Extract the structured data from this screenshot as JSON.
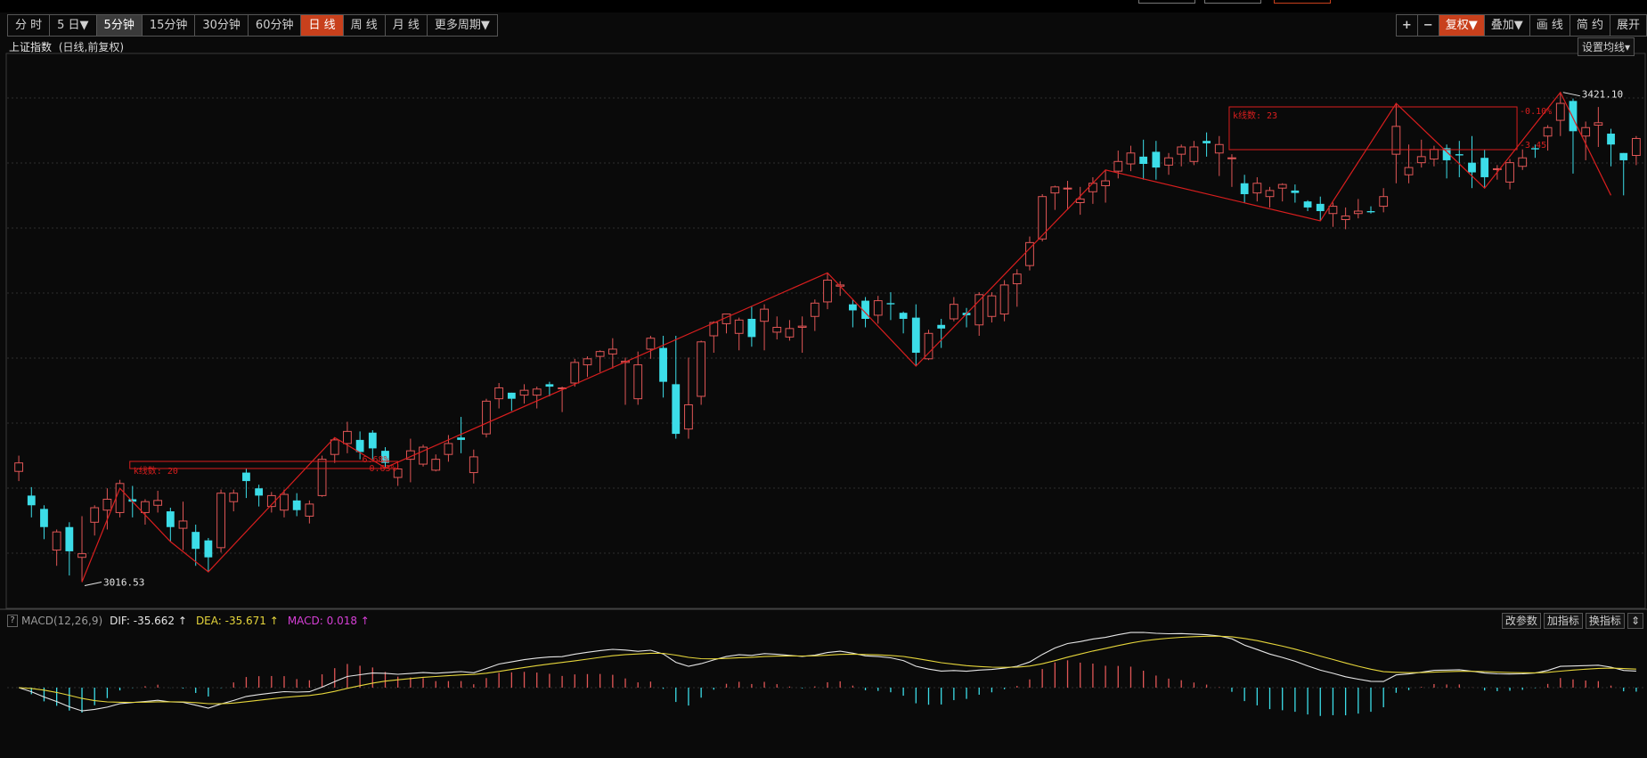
{
  "toolbar": {
    "periods": [
      {
        "label": "分 时",
        "state": "normal"
      },
      {
        "label": "5 日▼",
        "state": "normal"
      },
      {
        "label": "5分钟",
        "state": "highlight"
      },
      {
        "label": "15分钟",
        "state": "normal"
      },
      {
        "label": "30分钟",
        "state": "normal"
      },
      {
        "label": "60分钟",
        "state": "normal"
      },
      {
        "label": "日 线",
        "state": "active"
      },
      {
        "label": "周 线",
        "state": "normal"
      },
      {
        "label": "月 线",
        "state": "normal"
      },
      {
        "label": "更多周期▼",
        "state": "normal"
      }
    ],
    "zoom_in": "+",
    "zoom_out": "−",
    "right_buttons": [
      {
        "label": "复权▼",
        "state": "active"
      },
      {
        "label": "叠加▼",
        "state": "normal"
      },
      {
        "label": "画 线",
        "state": "normal"
      },
      {
        "label": "简 约",
        "state": "normal"
      },
      {
        "label": "展开",
        "state": "normal"
      }
    ]
  },
  "header": {
    "title": "上证指数",
    "mode": "(日线,前复权)",
    "set_ma": "设置均线▾"
  },
  "chart_labels": {
    "low_marker": "3016.53",
    "high_marker": "3421.10",
    "box1_label": "k线数: 20",
    "box1_upper": "6.68%",
    "box1_lower": "0.63%",
    "box2_label": "k线数: 23",
    "box2_upper": "-0.10%",
    "box2_lower": "-3.45"
  },
  "macd": {
    "help": "?",
    "name": "MACD(12,26,9)",
    "dif": "DIF: -35.662 ↑",
    "dea": "DEA: -35.671 ↑",
    "macd": "MACD: 0.018 ↑",
    "buttons": [
      "改参数",
      "加指标",
      "换指标"
    ]
  },
  "colors": {
    "up": "#e05656",
    "down": "#3cdde8",
    "accent": "#c8401c",
    "dif_line": "#e6e6e6",
    "dea_line": "#e5d53b",
    "zigzag": "#d91e1e"
  },
  "chart_data": {
    "type": "candlestick",
    "price_range": [
      3016.53,
      3421.1
    ],
    "candles": [
      [
        3108,
        3115,
        3100,
        3121
      ],
      [
        3088,
        3080,
        3070,
        3095
      ],
      [
        3077,
        3062,
        3052,
        3080
      ],
      [
        3043,
        3058,
        3030,
        3060
      ],
      [
        3062,
        3042,
        3022,
        3066
      ],
      [
        3037,
        3040,
        3016.53,
        3071
      ],
      [
        3066,
        3078,
        3055,
        3080
      ],
      [
        3076,
        3085,
        3060,
        3094
      ],
      [
        3074,
        3098,
        3070,
        3101
      ],
      [
        3085,
        3083,
        3070,
        3096
      ],
      [
        3074,
        3083,
        3064,
        3085
      ],
      [
        3080,
        3084,
        3074,
        3092
      ],
      [
        3075,
        3062,
        3050,
        3078
      ],
      [
        3061,
        3067,
        3043,
        3083
      ],
      [
        3058,
        3044,
        3030,
        3064
      ],
      [
        3051,
        3037,
        3025,
        3053
      ],
      [
        3045,
        3090,
        3041,
        3093
      ],
      [
        3083,
        3090,
        3075,
        3093
      ],
      [
        3107,
        3100,
        3086,
        3110
      ],
      [
        3094,
        3088,
        3079,
        3097
      ],
      [
        3079,
        3088,
        3074,
        3091
      ],
      [
        3076,
        3089,
        3070,
        3093
      ],
      [
        3084,
        3076,
        3071,
        3090
      ],
      [
        3071,
        3081,
        3065,
        3084
      ],
      [
        3088,
        3118,
        3087,
        3121
      ],
      [
        3122,
        3134,
        3115,
        3136
      ],
      [
        3131,
        3141,
        3123,
        3149
      ],
      [
        3134,
        3124,
        3118,
        3141
      ],
      [
        3140,
        3127,
        3118,
        3142
      ],
      [
        3125,
        3115,
        3111,
        3128
      ],
      [
        3103,
        3110,
        3096,
        3114
      ],
      [
        3118,
        3125,
        3099,
        3135
      ],
      [
        3114,
        3128,
        3112,
        3130
      ],
      [
        3109,
        3118,
        3108,
        3122
      ],
      [
        3122,
        3131,
        3116,
        3138
      ],
      [
        3136,
        3134,
        3123,
        3153
      ],
      [
        3107,
        3120,
        3098,
        3126
      ],
      [
        3139,
        3166,
        3136,
        3168
      ],
      [
        3168,
        3177,
        3160,
        3181
      ],
      [
        3173,
        3168,
        3158,
        3173
      ],
      [
        3171,
        3175,
        3164,
        3180
      ],
      [
        3171,
        3176,
        3160,
        3178
      ],
      [
        3180,
        3178,
        3170,
        3182
      ],
      [
        3177,
        3177,
        3157,
        3178
      ],
      [
        3181,
        3198,
        3178,
        3201
      ],
      [
        3196,
        3201,
        3186,
        3203
      ],
      [
        3203,
        3207,
        3190,
        3208
      ],
      [
        3205,
        3209,
        3193,
        3218
      ],
      [
        3198,
        3199,
        3163,
        3202
      ],
      [
        3168,
        3196,
        3163,
        3207
      ],
      [
        3209,
        3218,
        3201,
        3220
      ],
      [
        3210,
        3182,
        3169,
        3220
      ],
      [
        3180,
        3139,
        3135,
        3220
      ],
      [
        3143,
        3163,
        3135,
        3202
      ],
      [
        3170,
        3215,
        3163,
        3216
      ],
      [
        3220,
        3231,
        3206,
        3232
      ],
      [
        3230,
        3238,
        3222,
        3238
      ],
      [
        3222,
        3233,
        3208,
        3235
      ],
      [
        3234,
        3219,
        3211,
        3244
      ],
      [
        3232,
        3242,
        3208,
        3246
      ],
      [
        3223,
        3227,
        3217,
        3236
      ],
      [
        3219,
        3226,
        3216,
        3233
      ],
      [
        3227,
        3228,
        3206,
        3236
      ],
      [
        3236,
        3247,
        3224,
        3250
      ],
      [
        3248,
        3266,
        3242,
        3272
      ],
      [
        3261,
        3262,
        3253,
        3265
      ],
      [
        3246,
        3241,
        3227,
        3250
      ],
      [
        3249,
        3234,
        3227,
        3252
      ],
      [
        3237,
        3249,
        3230,
        3253
      ],
      [
        3247,
        3246,
        3233,
        3256
      ],
      [
        3239,
        3234,
        3222,
        3240
      ],
      [
        3235,
        3206,
        3195,
        3246
      ],
      [
        3201,
        3222,
        3200,
        3225
      ],
      [
        3229,
        3226,
        3210,
        3234
      ],
      [
        3234,
        3246,
        3232,
        3252
      ],
      [
        3239,
        3237,
        3227,
        3243
      ],
      [
        3229,
        3254,
        3220,
        3256
      ],
      [
        3236,
        3253,
        3231,
        3256
      ],
      [
        3238,
        3262,
        3232,
        3266
      ],
      [
        3263,
        3271,
        3244,
        3275
      ],
      [
        3278,
        3297,
        3274,
        3302
      ],
      [
        3300,
        3335,
        3298,
        3337
      ],
      [
        3338,
        3343,
        3324,
        3344
      ],
      [
        3342,
        3342,
        3324,
        3348
      ],
      [
        3330,
        3333,
        3320,
        3343
      ],
      [
        3339,
        3346,
        3329,
        3351
      ],
      [
        3344,
        3348,
        3330,
        3357
      ],
      [
        3356,
        3364,
        3350,
        3373
      ],
      [
        3362,
        3371,
        3356,
        3377
      ],
      [
        3368,
        3362,
        3349,
        3382
      ],
      [
        3372,
        3359,
        3349,
        3381
      ],
      [
        3361,
        3367,
        3353,
        3371
      ],
      [
        3370,
        3376,
        3360,
        3378
      ],
      [
        3364,
        3376,
        3361,
        3381
      ],
      [
        3381,
        3379,
        3368,
        3388
      ],
      [
        3371,
        3378,
        3352,
        3385
      ],
      [
        3367,
        3367,
        3343,
        3370
      ],
      [
        3346,
        3337,
        3330,
        3353
      ],
      [
        3338,
        3346,
        3331,
        3351
      ],
      [
        3335,
        3340,
        3326,
        3343
      ],
      [
        3342,
        3345,
        3331,
        3346
      ],
      [
        3340,
        3338,
        3330,
        3345
      ],
      [
        3331,
        3326,
        3323,
        3332
      ],
      [
        3329,
        3323,
        3315,
        3335
      ],
      [
        3321,
        3327,
        3310,
        3330
      ],
      [
        3316,
        3319,
        3308,
        3326
      ],
      [
        3321,
        3323,
        3317,
        3333
      ],
      [
        3323,
        3322,
        3321,
        3327
      ],
      [
        3327,
        3335,
        3322,
        3342
      ],
      [
        3370,
        3393,
        3346,
        3412
      ],
      [
        3353,
        3359,
        3346,
        3378
      ],
      [
        3363,
        3368,
        3359,
        3382
      ],
      [
        3366,
        3374,
        3360,
        3377
      ],
      [
        3375,
        3365,
        3350,
        3378
      ],
      [
        3370,
        3369,
        3351,
        3381
      ],
      [
        3363,
        3355,
        3342,
        3385
      ],
      [
        3367,
        3351,
        3342,
        3374
      ],
      [
        3358,
        3358,
        3349,
        3361
      ],
      [
        3347,
        3363,
        3341,
        3366
      ],
      [
        3360,
        3367,
        3357,
        3374
      ],
      [
        3375,
        3374,
        3367,
        3378
      ],
      [
        3385,
        3392,
        3373,
        3394
      ],
      [
        3398,
        3412,
        3385,
        3421.1
      ],
      [
        3414,
        3389,
        3354,
        3416
      ],
      [
        3385,
        3392,
        3365,
        3397
      ],
      [
        3394,
        3396,
        3376,
        3409
      ],
      [
        3387,
        3378,
        3360,
        3391
      ],
      [
        3371,
        3365,
        3336,
        3371
      ],
      [
        3369,
        3383,
        3361,
        3385
      ]
    ],
    "annotations": {
      "low": 3016.53,
      "high": 3421.1
    },
    "macd": {
      "dif": -35.662,
      "dea": -35.671,
      "macd": 0.018
    }
  }
}
